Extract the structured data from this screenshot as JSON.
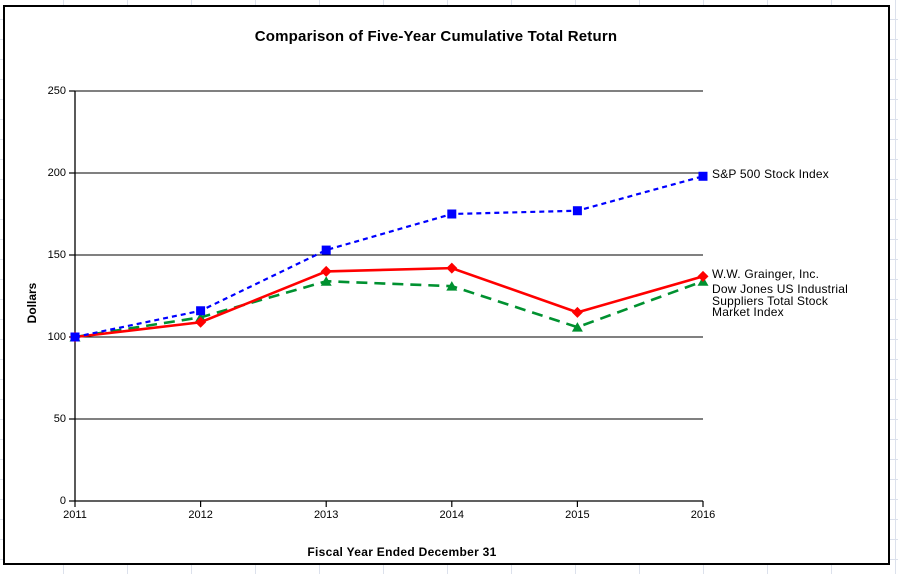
{
  "chart_data": {
    "type": "line",
    "title": "Comparison of Five-Year Cumulative Total Return",
    "xlabel": "Fiscal Year Ended December 31",
    "ylabel": "Dollars",
    "categories": [
      "2011",
      "2012",
      "2013",
      "2014",
      "2015",
      "2016"
    ],
    "series": [
      {
        "name": "S&P 500 Stock Index",
        "label_lines": [
          "S&P 500 Stock Index"
        ],
        "color": "#0000ff",
        "line_style": "dashed-short",
        "marker": "square",
        "values": [
          100,
          116,
          153,
          175,
          177,
          198
        ]
      },
      {
        "name": "W.W. Grainger, Inc.",
        "label_lines": [
          "W.W. Grainger, Inc."
        ],
        "color": "#ff0000",
        "line_style": "solid",
        "marker": "diamond",
        "values": [
          100,
          109,
          140,
          142,
          115,
          137
        ]
      },
      {
        "name": "Dow Jones US Industrial Suppliers Total Stock Market Index",
        "label_lines": [
          "Dow Jones US Industrial",
          "Suppliers Total Stock",
          "Market Index"
        ],
        "color": "#009130",
        "line_style": "dashed-long",
        "marker": "triangle",
        "values": [
          100,
          112,
          134,
          131,
          106,
          134
        ]
      }
    ],
    "ylim": [
      0,
      250
    ],
    "yticks": [
      0,
      50,
      100,
      150,
      200,
      250
    ],
    "grid": true,
    "axis_color": "#000000",
    "background": "#ffffff",
    "legend_position": "right-of-plot"
  }
}
